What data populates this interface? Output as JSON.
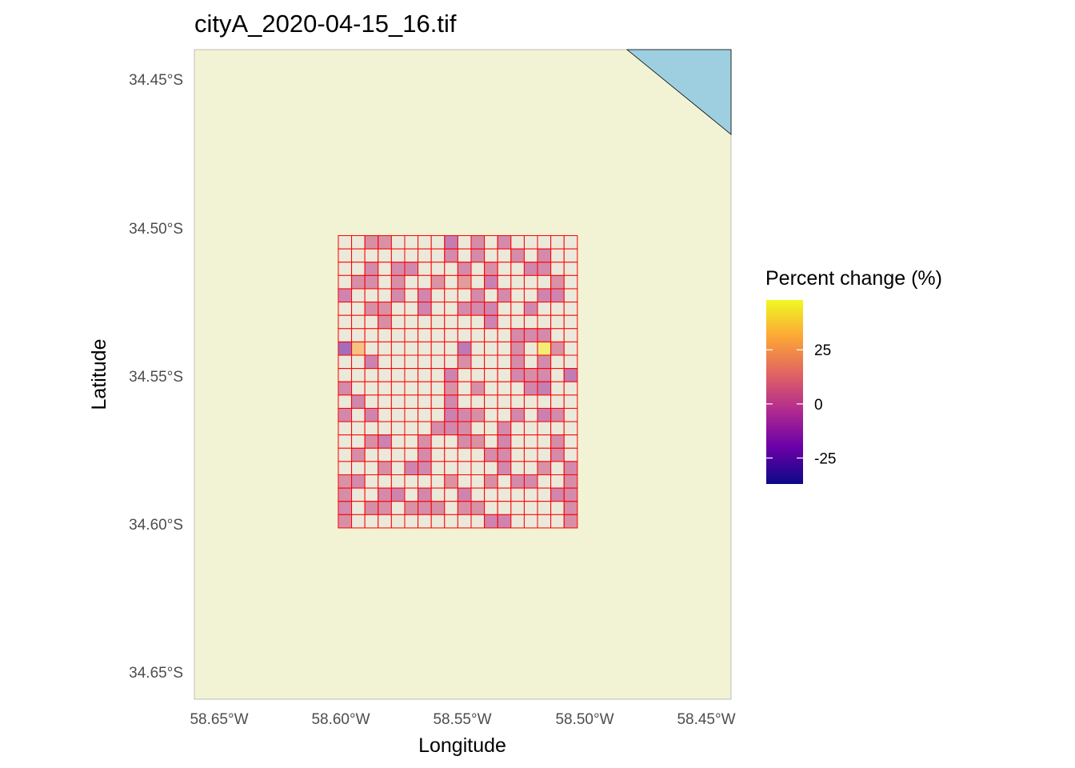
{
  "title": "cityA_2020-04-15_16.tif",
  "colors": {
    "land": "#f2f2d5",
    "water": "#9ecfe1",
    "grid_stroke": "#ff0000",
    "cell_empty": "#ebe9da",
    "palette": [
      "#0d0887",
      "#6a00a8",
      "#b12a90",
      "#e16462",
      "#fca636",
      "#f0f921"
    ]
  },
  "chart_data": {
    "type": "heatmap",
    "xlabel": "Longitude",
    "ylabel": "Latitude",
    "x_ticks": [
      "58.65°W",
      "58.60°W",
      "58.55°W",
      "58.50°W",
      "58.45°W"
    ],
    "y_ticks": [
      "34.45°S",
      "34.50°S",
      "34.55°S",
      "34.60°S",
      "34.65°S"
    ],
    "xlim": [
      -58.659,
      -58.439
    ],
    "ylim": [
      -34.659,
      -34.439
    ],
    "grid": {
      "lon_min": -58.6,
      "lon_max": -58.502,
      "lat_min": -34.601,
      "lat_max": -34.502,
      "cols": 18,
      "rows": 22
    },
    "values": [
      [
        null,
        null,
        3,
        4,
        null,
        null,
        null,
        null,
        -8,
        null,
        1,
        null,
        0,
        null,
        null,
        null,
        null,
        null
      ],
      [
        null,
        null,
        null,
        null,
        null,
        null,
        null,
        null,
        0,
        null,
        0,
        null,
        null,
        1,
        null,
        0,
        null,
        null
      ],
      [
        null,
        null,
        0,
        null,
        0,
        -1,
        null,
        null,
        null,
        0,
        null,
        3,
        null,
        null,
        -2,
        0,
        null,
        null
      ],
      [
        null,
        3,
        2,
        null,
        3,
        null,
        null,
        5,
        null,
        10,
        null,
        -5,
        null,
        null,
        null,
        null,
        4,
        null
      ],
      [
        -3,
        null,
        null,
        null,
        0,
        null,
        -2,
        null,
        null,
        null,
        0,
        null,
        0,
        null,
        null,
        -3,
        -3,
        null
      ],
      [
        null,
        null,
        3,
        4,
        null,
        null,
        -3,
        null,
        null,
        0,
        0,
        -3,
        null,
        null,
        -1,
        null,
        null,
        null
      ],
      [
        null,
        null,
        null,
        3,
        null,
        null,
        null,
        null,
        null,
        null,
        null,
        -3,
        null,
        null,
        null,
        null,
        null,
        null
      ],
      [
        null,
        null,
        null,
        null,
        null,
        null,
        null,
        null,
        null,
        null,
        null,
        null,
        null,
        0,
        0,
        0,
        null,
        null
      ],
      [
        -21,
        28,
        null,
        null,
        null,
        null,
        null,
        null,
        null,
        -11,
        null,
        null,
        null,
        2,
        null,
        45,
        4,
        null
      ],
      [
        null,
        null,
        -4,
        null,
        null,
        null,
        null,
        null,
        null,
        3,
        null,
        null,
        null,
        1,
        null,
        0,
        null,
        null
      ],
      [
        null,
        null,
        null,
        null,
        null,
        null,
        null,
        null,
        -4,
        null,
        null,
        null,
        null,
        -1,
        2,
        0,
        null,
        -9
      ],
      [
        0,
        null,
        null,
        null,
        null,
        null,
        null,
        null,
        4,
        null,
        3,
        null,
        null,
        null,
        -2,
        -7,
        null,
        null
      ],
      [
        null,
        -2,
        null,
        null,
        null,
        null,
        null,
        null,
        -1,
        null,
        null,
        null,
        null,
        null,
        null,
        null,
        null,
        null
      ],
      [
        -1,
        null,
        -3,
        null,
        null,
        null,
        null,
        null,
        -5,
        -1,
        3,
        null,
        null,
        -1,
        null,
        -5,
        0,
        null
      ],
      [
        null,
        null,
        null,
        null,
        null,
        null,
        null,
        1,
        -1,
        1,
        null,
        null,
        0,
        null,
        null,
        null,
        null,
        null
      ],
      [
        null,
        null,
        3,
        -4,
        null,
        null,
        3,
        null,
        null,
        1,
        4,
        null,
        -2,
        null,
        null,
        null,
        2,
        null
      ],
      [
        null,
        2,
        null,
        null,
        null,
        null,
        0,
        null,
        null,
        null,
        null,
        1,
        0,
        null,
        null,
        null,
        0,
        null
      ],
      [
        null,
        null,
        null,
        3,
        null,
        -3,
        -1,
        null,
        null,
        null,
        null,
        null,
        -1,
        null,
        null,
        4,
        null,
        0
      ],
      [
        4,
        0,
        null,
        null,
        null,
        null,
        null,
        null,
        5,
        null,
        null,
        3,
        null,
        0,
        0,
        null,
        null,
        2
      ],
      [
        2,
        null,
        null,
        0,
        -3,
        null,
        -1,
        null,
        null,
        -3,
        null,
        null,
        null,
        null,
        null,
        null,
        -2,
        0
      ],
      [
        0,
        null,
        2,
        3,
        null,
        4,
        2,
        3,
        null,
        3,
        4,
        null,
        null,
        null,
        null,
        null,
        null,
        2
      ],
      [
        3,
        null,
        null,
        null,
        null,
        null,
        null,
        null,
        null,
        null,
        null,
        -3,
        -3,
        null,
        null,
        null,
        null,
        3
      ]
    ],
    "legend": {
      "title": "Percent change (%)",
      "min": -37,
      "max": 48,
      "ticks": [
        25,
        0,
        -25
      ],
      "tick_labels": [
        "25",
        "0",
        "-25"
      ]
    }
  }
}
